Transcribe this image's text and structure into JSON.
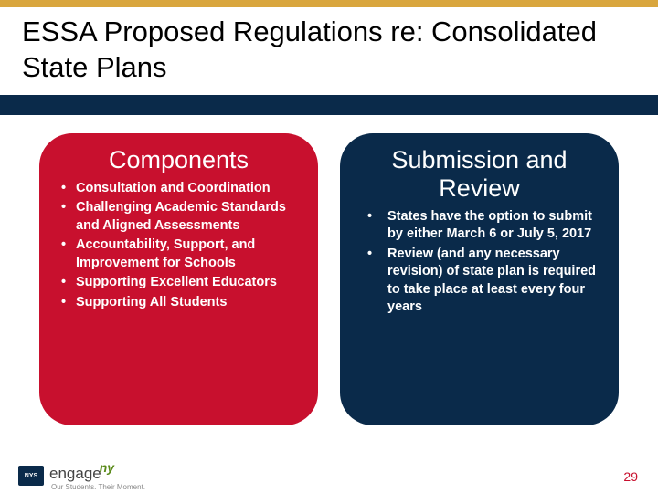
{
  "colors": {
    "gold": "#d9a63e",
    "navy": "#0a2a4a",
    "red_panel": "#c8102e",
    "navy_panel": "#0a2a4a",
    "page_num": "#c8102e"
  },
  "title": "ESSA Proposed Regulations re: Consolidated State Plans",
  "left_panel": {
    "heading": "Components",
    "items": [
      "Consultation and Coordination",
      "Challenging Academic Standards and Aligned Assessments",
      "Accountability, Support, and Improvement for Schools",
      "Supporting Excellent Educators",
      "Supporting All Students"
    ]
  },
  "right_panel": {
    "heading": "Submission and Review",
    "items": [
      "States have the option to submit by either March 6 or July 5, 2017",
      "Review (and any necessary revision) of state plan is required to take place at least every four years"
    ]
  },
  "footer": {
    "nys_label": "NYS",
    "engage_text": "engage",
    "engage_ny": "ny",
    "tagline": "Our Students. Their Moment.",
    "page_number": "29"
  }
}
